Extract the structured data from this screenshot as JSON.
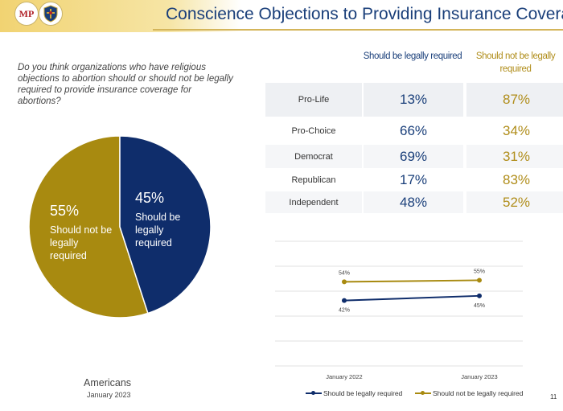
{
  "header": {
    "logo_left_text": "MP",
    "title": "Conscience Objections to Providing Insurance Coverage"
  },
  "question": "Do you think organizations who have religious objections to abortion should or should not be legally required to provide insurance coverage for abortions?",
  "colors": {
    "navy": "#1a3f7a",
    "gold": "#b08d1a",
    "pie_navy": "#0f2d6b",
    "pie_gold": "#a88a10"
  },
  "pie": {
    "legal_pct": "45%",
    "legal_label": "Should be legally required",
    "notlegal_pct": "55%",
    "notlegal_label": "Should not be legally required",
    "footer_title": "Americans",
    "footer_date": "January 2023"
  },
  "table": {
    "col_legal": "Should be legally required",
    "col_notlegal": "Should not be legally required",
    "rows": [
      {
        "label": "Pro-Life",
        "legal": "13%",
        "notlegal": "87%"
      },
      {
        "label": "Pro-Choice",
        "legal": "66%",
        "notlegal": "34%"
      },
      {
        "label": "Democrat",
        "legal": "69%",
        "notlegal": "31%"
      },
      {
        "label": "Republican",
        "legal": "17%",
        "notlegal": "83%"
      },
      {
        "label": "Independent",
        "legal": "48%",
        "notlegal": "52%"
      }
    ]
  },
  "chart_data": [
    {
      "type": "pie",
      "title": "Americans",
      "subtitle": "January 2023",
      "categories": [
        "Should be legally required",
        "Should not be legally required"
      ],
      "values": [
        45,
        55
      ]
    },
    {
      "type": "table",
      "columns": [
        "Should be legally required",
        "Should not be legally required"
      ],
      "rows": [
        {
          "label": "Pro-Life",
          "values": [
            13,
            87
          ]
        },
        {
          "label": "Pro-Choice",
          "values": [
            66,
            34
          ]
        },
        {
          "label": "Democrat",
          "values": [
            69,
            31
          ]
        },
        {
          "label": "Republican",
          "values": [
            17,
            83
          ]
        },
        {
          "label": "Independent",
          "values": [
            48,
            52
          ]
        }
      ]
    },
    {
      "type": "line",
      "categories": [
        "January 2022",
        "January 2023"
      ],
      "ylim": [
        0,
        80
      ],
      "grid": true,
      "legend": "bottom",
      "series": [
        {
          "name": "Should be legally required",
          "values": [
            42,
            45
          ],
          "labels": [
            "42%",
            "45%"
          ]
        },
        {
          "name": "Should not be legally required",
          "values": [
            54,
            55
          ],
          "labels": [
            "54%",
            "55%"
          ]
        }
      ]
    }
  ],
  "page_number": "11"
}
